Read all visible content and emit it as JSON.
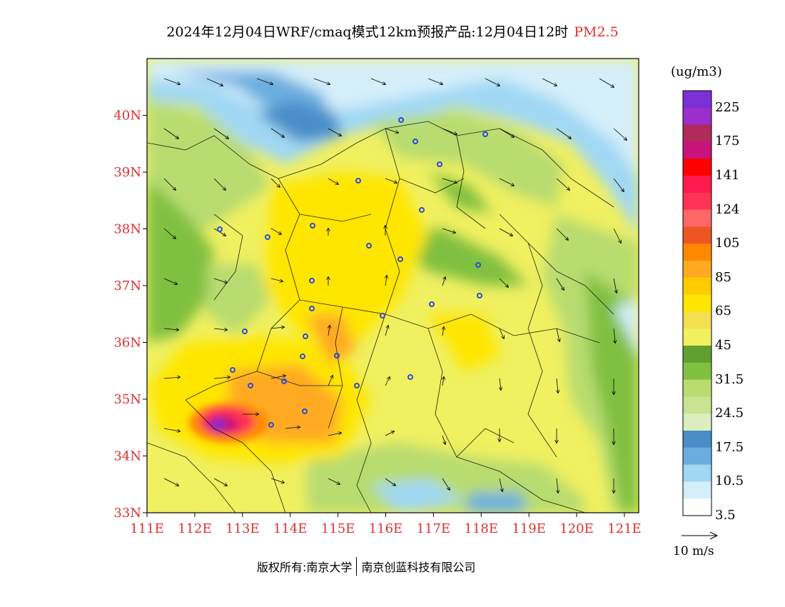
{
  "title": {
    "main": "2024年12月04日WRF/cmaq模式12km预报产品:12月04日12时",
    "pollutant": "PM2.5"
  },
  "colors": {
    "pollutant_title": "#e8302f",
    "axis_labels": "#e03030"
  },
  "map": {
    "lat_labels": [
      "40N",
      "39N",
      "38N",
      "37N",
      "36N",
      "35N",
      "34N",
      "33N"
    ],
    "lat_values": [
      40,
      39,
      38,
      37,
      36,
      35,
      34,
      33
    ],
    "lon_labels": [
      "111E",
      "112E",
      "113E",
      "114E",
      "115E",
      "116E",
      "117E",
      "118E",
      "119E",
      "120E",
      "121E"
    ],
    "lon_values": [
      111,
      112,
      113,
      114,
      115,
      116,
      117,
      118,
      119,
      120,
      121
    ],
    "lon_range": [
      111,
      121.3
    ],
    "lat_range": [
      33,
      41
    ],
    "max_concentration_area": "purple hotspot near 112.6E, 34.6N",
    "city_markers_icon": "city-circle-icon"
  },
  "legend": {
    "unit": "(ug/m3)",
    "labels": [
      "225",
      "175",
      "141",
      "124",
      "105",
      "85",
      "65",
      "45",
      "31.5",
      "24.5",
      "17.5",
      "10.5",
      "3.5"
    ],
    "colors": [
      "#7b2fd6",
      "#9a2fcc",
      "#b02a5c",
      "#c8147a",
      "#ff0000",
      "#ff1a4d",
      "#ff3355",
      "#ff6666",
      "#ee5522",
      "#ff8800",
      "#ffaa22",
      "#ffcc00",
      "#ffe600",
      "#f3e050",
      "#f0f060",
      "#60a030",
      "#80c040",
      "#b8dc70",
      "#c8e490",
      "#dceec0",
      "#4a8ec8",
      "#6aaee0",
      "#a0d8f4",
      "#d4eefa",
      "#ffffff"
    ]
  },
  "wind": {
    "scale_label": "10 m/s",
    "arrow_icon": "wind-scale-arrow-icon"
  },
  "footer": {
    "left": "版权所有:南京大学",
    "right": "南京创蓝科技有限公司"
  }
}
